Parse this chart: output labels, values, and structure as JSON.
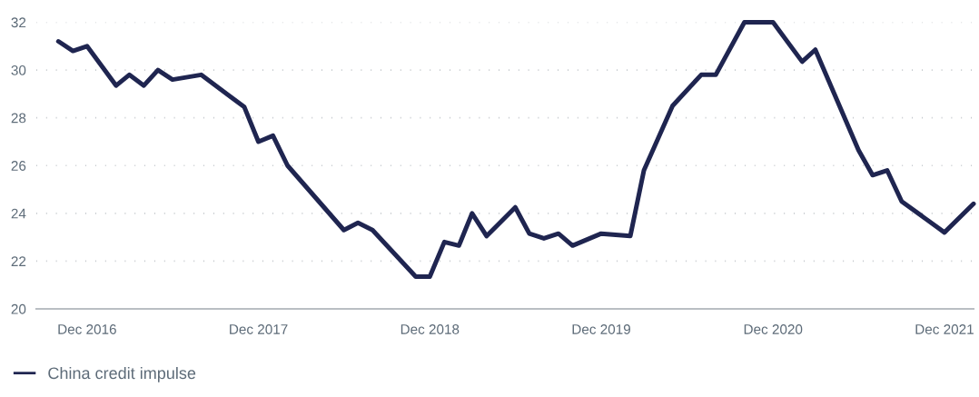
{
  "chart_data": {
    "type": "line",
    "x": [
      "2016-10",
      "2016-11",
      "2016-12",
      "2017-02",
      "2017-03",
      "2017-04",
      "2017-05",
      "2017-06",
      "2017-08",
      "2017-11",
      "2017-12",
      "2018-01",
      "2018-02",
      "2018-06",
      "2018-07",
      "2018-08",
      "2018-11",
      "2018-12",
      "2019-01",
      "2019-02",
      "2019-03",
      "2019-04",
      "2019-06",
      "2019-07",
      "2019-08",
      "2019-09",
      "2019-10",
      "2019-12",
      "2020-02",
      "2020-03",
      "2020-05",
      "2020-07",
      "2020-08",
      "2020-10",
      "2020-12",
      "2021-02",
      "2021-03",
      "2021-06",
      "2021-07",
      "2021-08",
      "2021-09",
      "2021-12",
      "2022-02"
    ],
    "series": [
      {
        "name": "China credit impulse",
        "color": "#1f2550",
        "values": [
          31.2,
          30.8,
          31.0,
          29.35,
          29.8,
          29.35,
          30.0,
          29.6,
          29.8,
          28.45,
          27.0,
          27.25,
          26.0,
          23.3,
          23.6,
          23.3,
          21.35,
          21.35,
          22.8,
          22.65,
          24.0,
          23.05,
          24.25,
          23.15,
          22.95,
          23.15,
          22.65,
          23.15,
          23.05,
          25.8,
          28.5,
          29.8,
          29.8,
          32.0,
          32.0,
          30.35,
          30.85,
          26.65,
          25.6,
          25.8,
          24.5,
          23.2,
          24.4
        ]
      }
    ],
    "xlim": [
      "2016-08-15",
      "2022-02-01"
    ],
    "xticks": [
      {
        "value": "2016-12",
        "label": "Dec 2016"
      },
      {
        "value": "2017-12",
        "label": "Dec 2017"
      },
      {
        "value": "2018-12",
        "label": "Dec 2018"
      },
      {
        "value": "2019-12",
        "label": "Dec 2019"
      },
      {
        "value": "2020-12",
        "label": "Dec 2020"
      },
      {
        "value": "2021-12",
        "label": "Dec 2021"
      }
    ],
    "ylim": [
      20,
      32
    ],
    "yticks": [
      20,
      22,
      24,
      26,
      28,
      30,
      32
    ],
    "grid": "y",
    "legend": "bottom",
    "marker": "none",
    "line_style": "solid"
  }
}
